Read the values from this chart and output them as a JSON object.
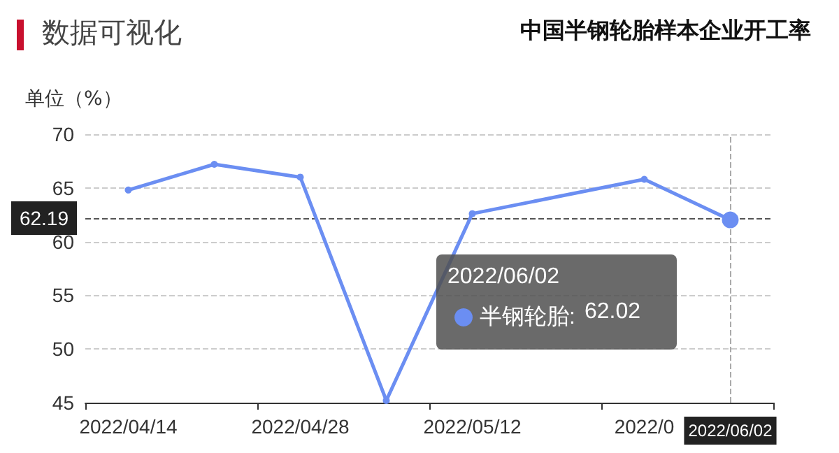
{
  "chart_data": {
    "type": "line",
    "title": "数据可视化",
    "subtitle": "中国半钢轮胎样本企业开工率",
    "ylabel": "单位（%）",
    "categories": [
      "2022/04/14",
      null,
      "2022/04/28",
      null,
      "2022/05/12",
      null,
      "2022/0",
      "2022/06/02"
    ],
    "series": [
      {
        "name": "半钢轮胎:",
        "color": "#6b8ef2",
        "values": [
          64.8,
          67.2,
          66.0,
          45.2,
          62.6,
          null,
          65.8,
          62.02
        ]
      }
    ],
    "annotations": [
      "62.02"
    ],
    "ylim": [
      45,
      70
    ],
    "yticks": [
      45,
      50,
      55,
      60,
      65,
      70
    ],
    "grid": "y",
    "marker": "circle",
    "line_style": "solid",
    "legend": "bottom",
    "ref_lines": [
      {
        "axis": "y",
        "value": 62.19,
        "label": "62.19",
        "color": "#555555",
        "line_style": "dashed"
      },
      {
        "axis": "x",
        "value": "2022/06/02",
        "color": "#aaaaaa",
        "line_style": "dashed"
      }
    ]
  }
}
